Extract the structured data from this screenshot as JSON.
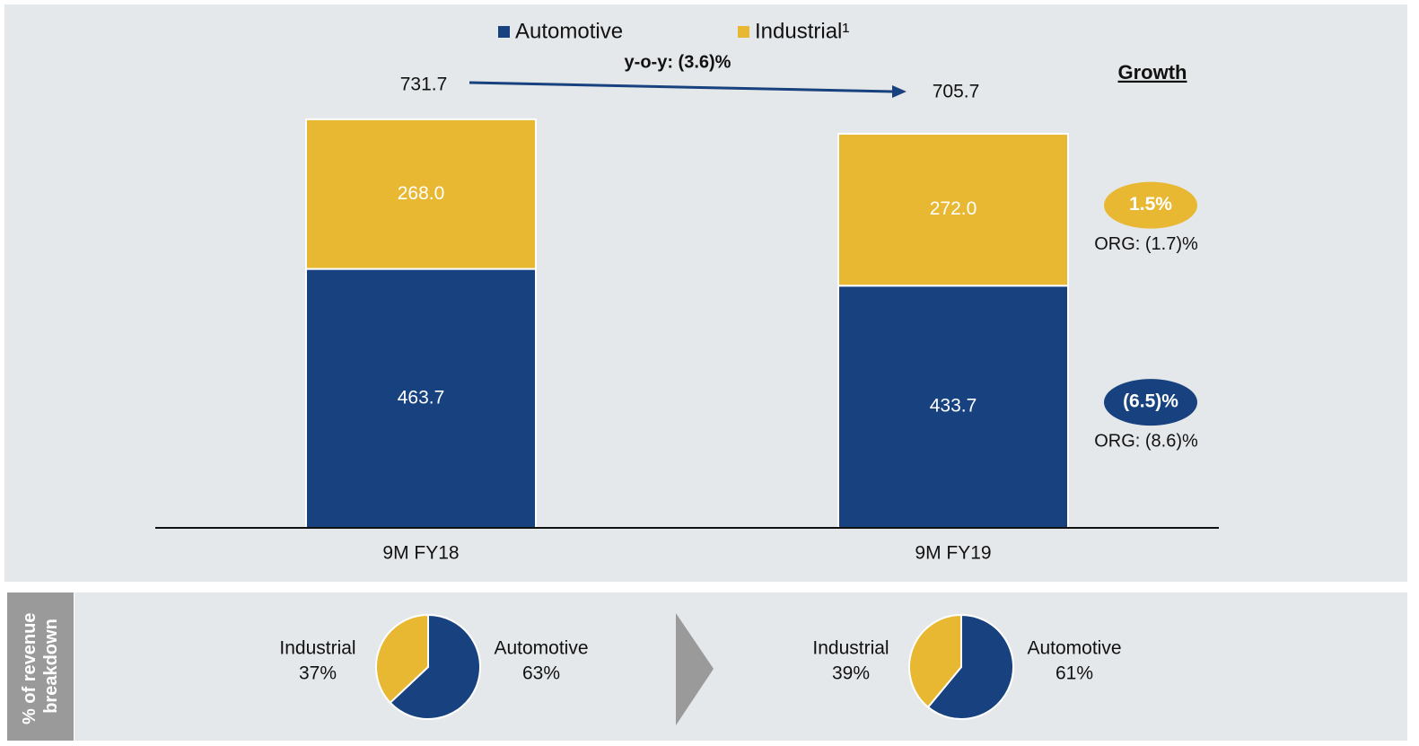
{
  "chart_data": [
    {
      "type": "bar",
      "stacked": true,
      "legend": "top",
      "categories": [
        "9M FY18",
        "9M FY19"
      ],
      "series": [
        {
          "name": "Automotive",
          "color": "#17427f",
          "values": [
            463.7,
            433.7
          ],
          "growth": "(6.5)%",
          "organic": "ORG: (8.6)%"
        },
        {
          "name": "Industrial¹",
          "color": "#e8b832",
          "values": [
            268.0,
            272.0
          ],
          "value_labels": [
            "268.0",
            "272.0"
          ],
          "growth": "1.5%",
          "organic": "ORG: (1.7)%"
        }
      ],
      "totals": [
        731.7,
        705.7
      ],
      "change": "y-o-y: (3.6)%",
      "growth_title": "Growth"
    },
    {
      "type": "pie",
      "categories": [
        "Automotive",
        "Industrial"
      ],
      "values": [
        63,
        37
      ],
      "value_labels": [
        "63%",
        "37%"
      ],
      "colors": [
        "#17427f",
        "#e8b832"
      ]
    },
    {
      "type": "pie",
      "categories": [
        "Automotive",
        "Industrial"
      ],
      "values": [
        61,
        39
      ],
      "value_labels": [
        "61%",
        "39%"
      ],
      "colors": [
        "#17427f",
        "#e8b832"
      ]
    }
  ],
  "side_label": [
    "% of revenue",
    "breakdown"
  ]
}
